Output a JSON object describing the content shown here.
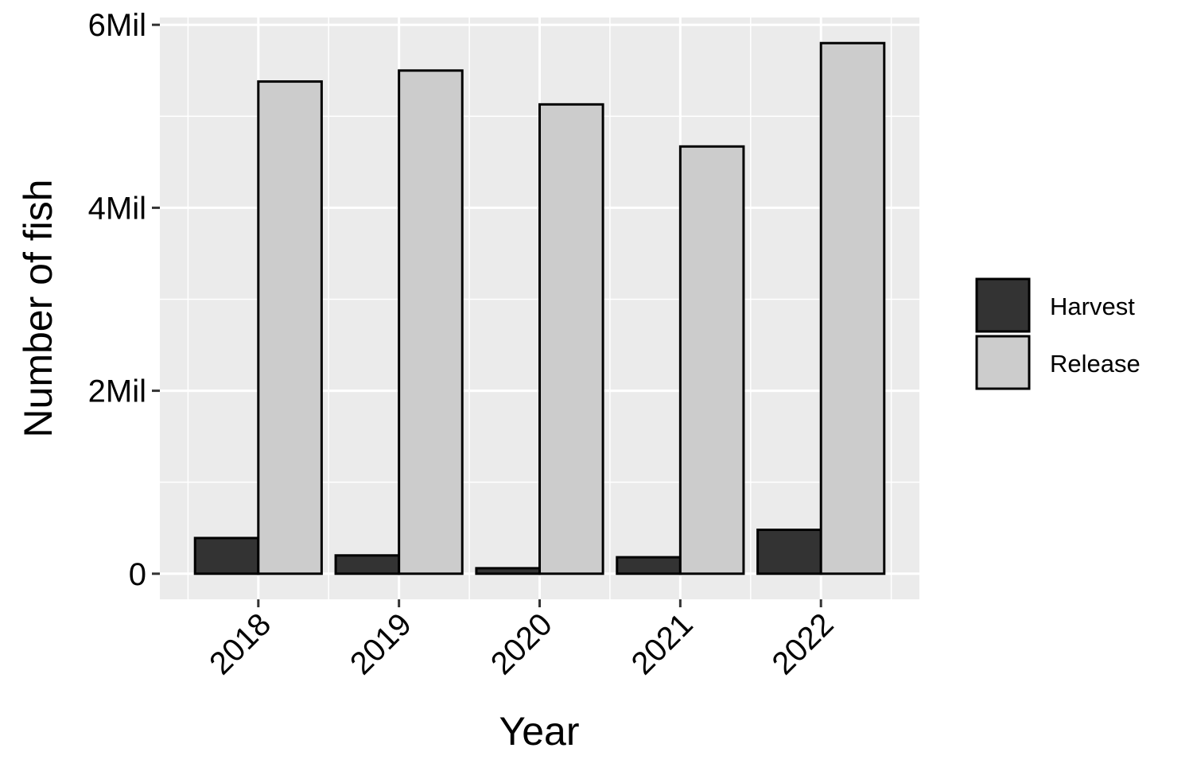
{
  "chart_data": {
    "type": "bar",
    "categories": [
      "2018",
      "2019",
      "2020",
      "2021",
      "2022"
    ],
    "series": [
      {
        "name": "Harvest",
        "values": [
          390000,
          200000,
          60000,
          180000,
          480000
        ],
        "color": "#333333"
      },
      {
        "name": "Release",
        "values": [
          5380000,
          5500000,
          5130000,
          4670000,
          5800000
        ],
        "color": "#cccccc"
      }
    ],
    "xlabel": "Year",
    "ylabel": "Number of fish",
    "ylim": [
      -280000,
      6080000
    ],
    "yticks": [
      0,
      2000000,
      4000000,
      6000000
    ],
    "ytick_labels": [
      "0",
      "2Mil",
      "4Mil",
      "6Mil"
    ],
    "panel_background": "#ebebeb",
    "grid": true,
    "legend_position": "right"
  }
}
